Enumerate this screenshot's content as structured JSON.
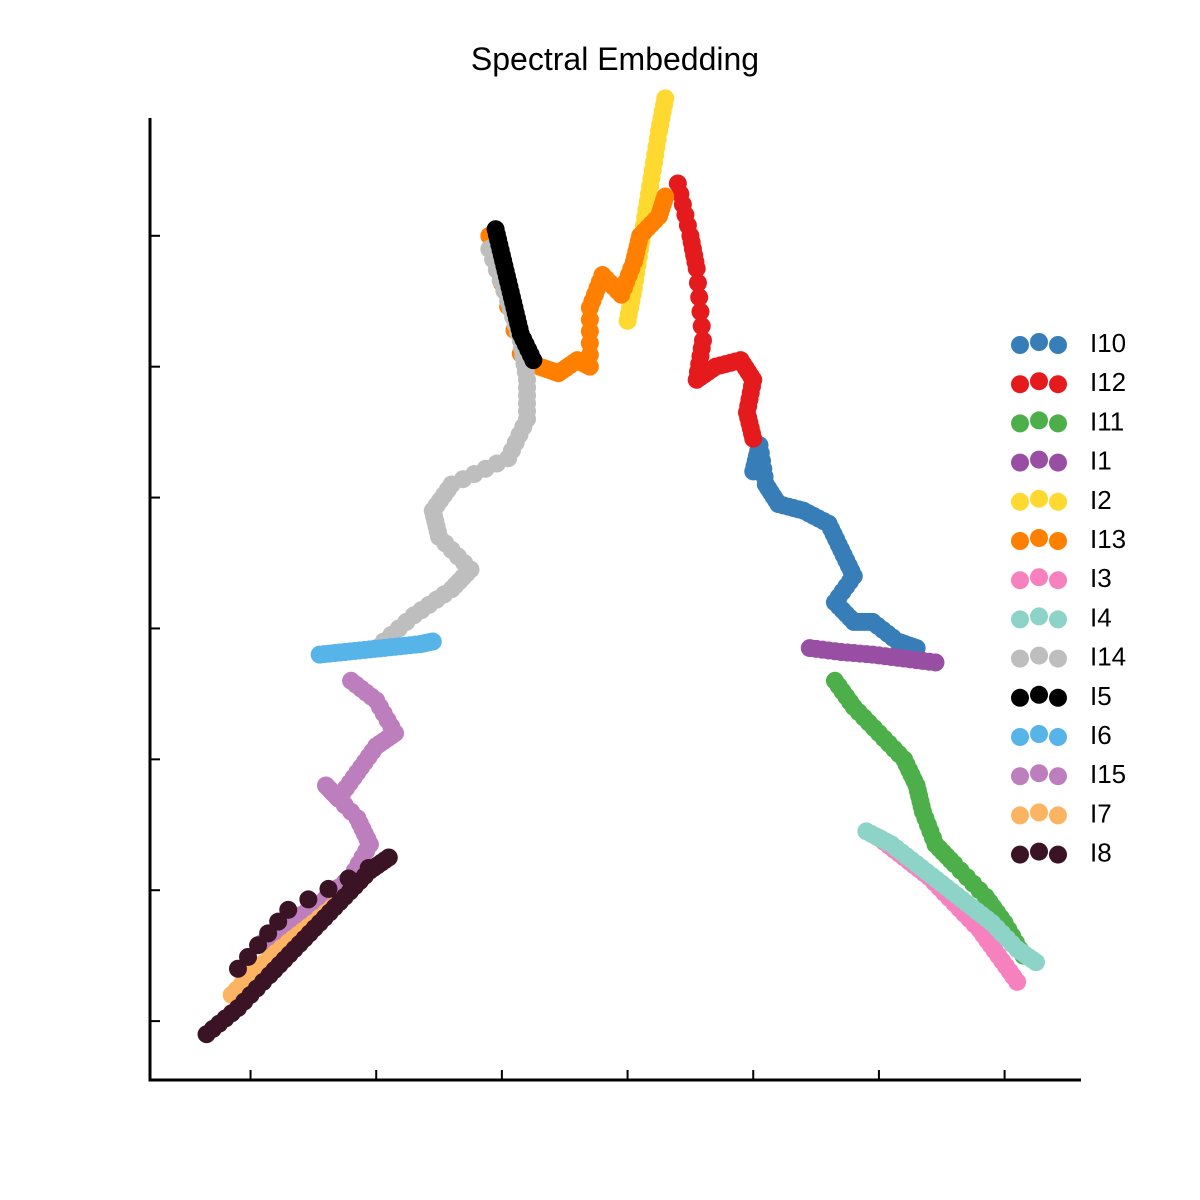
{
  "chart_data": {
    "type": "scatter",
    "title": "Spectral Embedding",
    "xlabel": "",
    "ylabel": "",
    "xlim": [
      -0.8,
      6.6
    ],
    "ylim": [
      -0.45,
      6.9
    ],
    "xticks": [
      0,
      1,
      2,
      3,
      4,
      5,
      6
    ],
    "yticks": [
      0,
      1,
      2,
      3,
      4,
      5,
      6
    ],
    "tick_labels_shown": false,
    "grid": false,
    "legend_position": "right",
    "series": [
      {
        "name": "I10",
        "color": "#377eb8",
        "points": [
          [
            4.0,
            4.2
          ],
          [
            4.05,
            4.4
          ],
          [
            4.1,
            4.1
          ],
          [
            4.2,
            3.95
          ],
          [
            4.4,
            3.9
          ],
          [
            4.6,
            3.8
          ],
          [
            4.7,
            3.6
          ],
          [
            4.8,
            3.4
          ],
          [
            4.65,
            3.2
          ],
          [
            4.8,
            3.05
          ],
          [
            4.95,
            3.05
          ],
          [
            5.15,
            2.9
          ],
          [
            5.3,
            2.85
          ]
        ]
      },
      {
        "name": "I12",
        "color": "#e41a1c",
        "points": [
          [
            3.4,
            6.4
          ],
          [
            3.5,
            6.0
          ],
          [
            3.55,
            5.75
          ],
          [
            3.6,
            5.2
          ],
          [
            3.55,
            4.9
          ],
          [
            3.7,
            5.0
          ],
          [
            3.9,
            5.05
          ],
          [
            4.0,
            4.9
          ],
          [
            3.95,
            4.65
          ],
          [
            4.0,
            4.45
          ]
        ]
      },
      {
        "name": "I11",
        "color": "#4daf4a",
        "points": [
          [
            4.65,
            2.6
          ],
          [
            4.8,
            2.4
          ],
          [
            5.0,
            2.2
          ],
          [
            5.2,
            2.0
          ],
          [
            5.3,
            1.8
          ],
          [
            5.35,
            1.6
          ],
          [
            5.45,
            1.35
          ],
          [
            5.6,
            1.2
          ],
          [
            5.85,
            0.95
          ],
          [
            6.0,
            0.75
          ],
          [
            6.15,
            0.5
          ]
        ]
      },
      {
        "name": "I1",
        "color": "#984ea3",
        "points": [
          [
            4.45,
            2.85
          ],
          [
            4.7,
            2.82
          ],
          [
            4.95,
            2.8
          ],
          [
            5.2,
            2.77
          ],
          [
            5.45,
            2.74
          ]
        ]
      },
      {
        "name": "I2",
        "color": "#ffd92f",
        "points": [
          [
            3.0,
            5.35
          ],
          [
            3.05,
            5.6
          ],
          [
            3.1,
            5.9
          ],
          [
            3.15,
            6.2
          ],
          [
            3.2,
            6.5
          ],
          [
            3.25,
            6.8
          ],
          [
            3.3,
            7.05
          ]
        ]
      },
      {
        "name": "I13",
        "color": "#ff7f00",
        "points": [
          [
            1.9,
            6.0
          ],
          [
            2.15,
            5.1
          ],
          [
            2.3,
            5.0
          ],
          [
            2.45,
            4.95
          ],
          [
            2.6,
            5.05
          ],
          [
            2.7,
            5.0
          ],
          [
            2.7,
            5.45
          ],
          [
            2.8,
            5.7
          ],
          [
            2.95,
            5.55
          ],
          [
            3.05,
            5.8
          ],
          [
            3.1,
            6.0
          ],
          [
            3.25,
            6.15
          ],
          [
            3.3,
            6.3
          ]
        ]
      },
      {
        "name": "I3",
        "color": "#f781bf",
        "points": [
          [
            5.0,
            1.4
          ],
          [
            5.2,
            1.25
          ],
          [
            5.4,
            1.1
          ],
          [
            5.6,
            0.9
          ],
          [
            5.8,
            0.7
          ],
          [
            5.95,
            0.5
          ],
          [
            6.1,
            0.3
          ]
        ]
      },
      {
        "name": "I4",
        "color": "#8dd3c7",
        "points": [
          [
            4.9,
            1.45
          ],
          [
            5.1,
            1.35
          ],
          [
            5.3,
            1.2
          ],
          [
            5.5,
            1.05
          ],
          [
            5.7,
            0.9
          ],
          [
            5.9,
            0.75
          ],
          [
            6.1,
            0.55
          ],
          [
            6.25,
            0.45
          ]
        ]
      },
      {
        "name": "I14",
        "color": "#bebebe",
        "points": [
          [
            1.9,
            5.9
          ],
          [
            2.05,
            5.5
          ],
          [
            2.15,
            5.2
          ],
          [
            2.2,
            4.9
          ],
          [
            2.2,
            4.6
          ],
          [
            2.05,
            4.3
          ],
          [
            1.6,
            4.1
          ],
          [
            1.45,
            3.9
          ],
          [
            1.5,
            3.7
          ],
          [
            1.75,
            3.45
          ],
          [
            1.6,
            3.3
          ],
          [
            1.3,
            3.1
          ],
          [
            1.0,
            2.85
          ]
        ]
      },
      {
        "name": "I5",
        "color": "#000000",
        "points": [
          [
            1.95,
            6.05
          ],
          [
            2.0,
            5.85
          ],
          [
            2.05,
            5.65
          ],
          [
            2.1,
            5.45
          ],
          [
            2.15,
            5.25
          ],
          [
            2.25,
            5.05
          ]
        ]
      },
      {
        "name": "I6",
        "color": "#56b4e9",
        "points": [
          [
            0.55,
            2.8
          ],
          [
            0.75,
            2.82
          ],
          [
            0.95,
            2.84
          ],
          [
            1.15,
            2.86
          ],
          [
            1.35,
            2.88
          ],
          [
            1.45,
            2.9
          ]
        ]
      },
      {
        "name": "I15",
        "color": "#bd7ebe",
        "points": [
          [
            0.8,
            2.6
          ],
          [
            1.0,
            2.45
          ],
          [
            1.15,
            2.2
          ],
          [
            1.0,
            2.1
          ],
          [
            0.85,
            1.9
          ],
          [
            0.7,
            1.7
          ],
          [
            0.6,
            1.8
          ],
          [
            0.85,
            1.55
          ],
          [
            0.95,
            1.35
          ],
          [
            0.8,
            1.1
          ],
          [
            0.55,
            0.9
          ],
          [
            0.3,
            0.75
          ],
          [
            0.1,
            0.6
          ]
        ]
      },
      {
        "name": "I7",
        "color": "#fdb462",
        "points": [
          [
            -0.15,
            0.2
          ],
          [
            0.05,
            0.4
          ],
          [
            0.3,
            0.6
          ],
          [
            0.5,
            0.75
          ],
          [
            0.75,
            0.95
          ],
          [
            0.95,
            1.15
          ]
        ]
      },
      {
        "name": "I8",
        "color": "#3a1425",
        "points": [
          [
            -0.35,
            -0.1
          ],
          [
            -0.1,
            0.1
          ],
          [
            0.15,
            0.35
          ],
          [
            0.35,
            0.55
          ],
          [
            0.55,
            0.75
          ],
          [
            0.75,
            0.95
          ],
          [
            0.95,
            1.15
          ],
          [
            1.1,
            1.25
          ],
          [
            0.3,
            0.85
          ],
          [
            -0.1,
            0.4
          ]
        ]
      }
    ]
  }
}
